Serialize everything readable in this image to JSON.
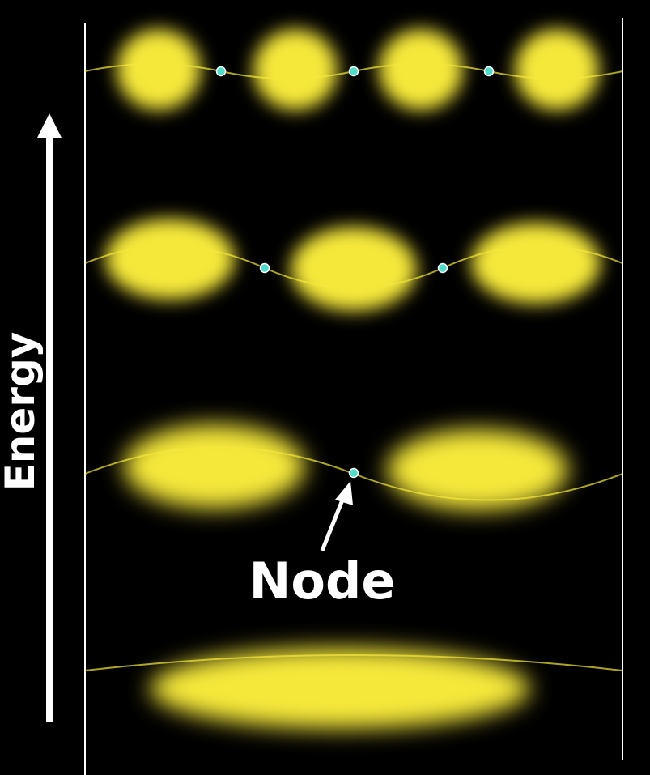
{
  "axis": {
    "label": "Energy"
  },
  "annotation": {
    "node_label": "Node"
  },
  "colors": {
    "background": "#000000",
    "lobe": "#f6e83a",
    "node": "#4fdcc8",
    "wall": "#ffffff",
    "arrow": "#ffffff",
    "text": "#ffffff"
  },
  "wavefunctions": [
    {
      "level": 1,
      "antinodes": 1,
      "nodes": 0
    },
    {
      "level": 2,
      "antinodes": 2,
      "nodes": 1
    },
    {
      "level": 3,
      "antinodes": 3,
      "nodes": 2
    },
    {
      "level": 4,
      "antinodes": 4,
      "nodes": 3
    }
  ]
}
